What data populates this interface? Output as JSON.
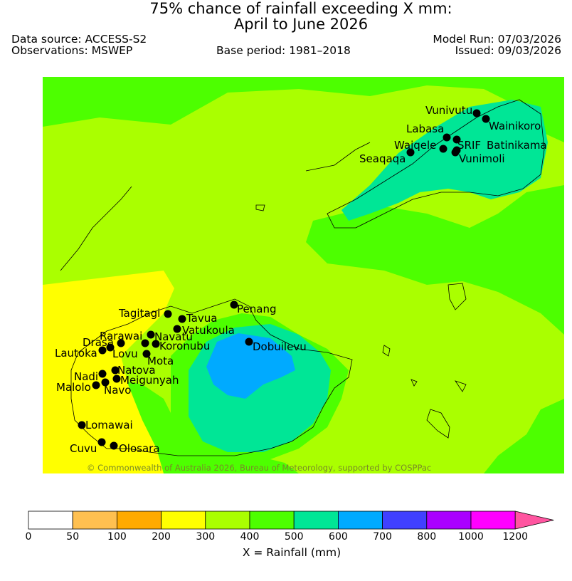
{
  "header": {
    "title_line1": "75% chance of rainfall exceeding X mm:",
    "title_line2": "April to June 2026",
    "data_source": "Data source: ACCESS-S2",
    "observations": "Observations: MSWEP",
    "base_period": "Base period: 1981–2018",
    "model_run": "Model Run: 07/03/2026",
    "issued": "Issued: 09/03/2026"
  },
  "map": {
    "copyright": "© Commonwealth of Australia 2026, Bureau of Meteorology, supported by COSPPac",
    "locations": [
      {
        "name": "Vunivutu"
      },
      {
        "name": "Wainikoro"
      },
      {
        "name": "Labasa"
      },
      {
        "name": "Waiqele"
      },
      {
        "name": "SRIF"
      },
      {
        "name": "Batinikama"
      },
      {
        "name": "Seaqaqa"
      },
      {
        "name": "Vunimoli"
      },
      {
        "name": "Tagitagi"
      },
      {
        "name": "Tavua"
      },
      {
        "name": "Penang"
      },
      {
        "name": "Vatukoula"
      },
      {
        "name": "Rarawai"
      },
      {
        "name": "Navatu"
      },
      {
        "name": "Drasa"
      },
      {
        "name": "Koronubu"
      },
      {
        "name": "Lautoka"
      },
      {
        "name": "Lovu"
      },
      {
        "name": "Dobuilevu"
      },
      {
        "name": "Mota"
      },
      {
        "name": "Natova"
      },
      {
        "name": "Nadi"
      },
      {
        "name": "Meigunyah"
      },
      {
        "name": "Malolo"
      },
      {
        "name": "Navo"
      },
      {
        "name": "Lomawai"
      },
      {
        "name": "Cuvu"
      },
      {
        "name": "Olosara"
      }
    ]
  },
  "legend": {
    "colors": [
      "#ffffff",
      "#ffc050",
      "#ffaa00",
      "#ffff00",
      "#aaff00",
      "#4dff00",
      "#00e696",
      "#00aaff",
      "#4040ff",
      "#aa00ff",
      "#ff00ff",
      "#ff55a0"
    ],
    "ticks": [
      "0",
      "50",
      "100",
      "200",
      "300",
      "400",
      "500",
      "600",
      "700",
      "800",
      "1000",
      "1200"
    ],
    "xlabel": "X = Rainfall (mm)"
  }
}
